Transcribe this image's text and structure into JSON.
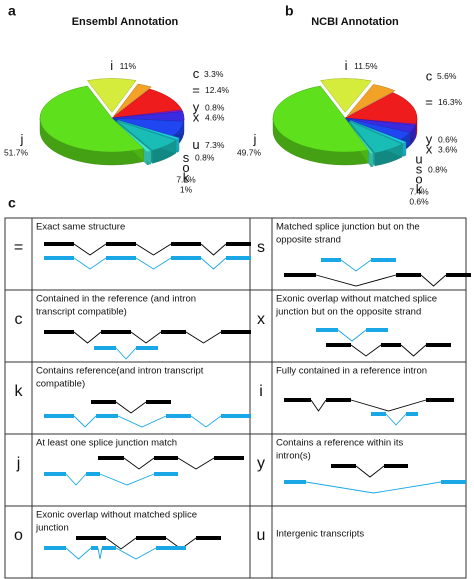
{
  "chart_data": [
    {
      "type": "pie",
      "panel": "a",
      "title": "Ensembl Annotation",
      "categories": [
        "i",
        "c",
        "=",
        "y",
        "x",
        "u",
        "s",
        "o",
        "k",
        "j"
      ],
      "values": [
        11,
        3.3,
        12.4,
        0.8,
        4.6,
        7.3,
        0.8,
        7.1,
        1,
        51.7
      ],
      "value_labels": [
        "11%",
        "3.3%",
        "12.4%",
        "0.8%",
        "4.6%",
        "7.3%",
        "0.8%",
        "7.1%",
        "1%",
        "51.7%"
      ],
      "colors": [
        "#d6ec3c",
        "#f2a227",
        "#ee1c1c",
        "#8a1ccf",
        "#3b2be0",
        "#1f46f0",
        "#1ed2ea",
        "#19bdb6",
        "#3fe6cf",
        "#5fe01c"
      ]
    },
    {
      "type": "pie",
      "panel": "b",
      "title": "NCBI Annotation",
      "categories": [
        "i",
        "c",
        "=",
        "y",
        "x",
        "u",
        "s",
        "o",
        "k",
        "j"
      ],
      "values": [
        11.5,
        5.6,
        16.3,
        0.6,
        3.6,
        3.9,
        0.8,
        7.4,
        0.6,
        49.7
      ],
      "value_labels": [
        "11.5%",
        "5.6%",
        "16.3%",
        "0.6%",
        "3.6%",
        null,
        "0.8%",
        "7.4%",
        "0.6%",
        "49.7%"
      ],
      "colors": [
        "#d6ec3c",
        "#f2a227",
        "#ee1c1c",
        "#8a1ccf",
        "#3b2be0",
        "#1f46f0",
        "#1ed2ea",
        "#19bdb6",
        "#3fe6cf",
        "#5fe01c"
      ]
    }
  ],
  "panel_c": {
    "label": "c",
    "rows": [
      {
        "left": {
          "code": "=",
          "lines": [
            "Exact same structure"
          ]
        },
        "right": {
          "code": "s",
          "lines": [
            "Matched splice junction but on the",
            "opposite strand"
          ]
        }
      },
      {
        "left": {
          "code": "c",
          "lines": [
            "Contained in the reference (and intron",
            "transcript compatible)"
          ]
        },
        "right": {
          "code": "x",
          "lines": [
            "Exonic overlap without matched splice",
            "junction but on the opposite strand"
          ]
        }
      },
      {
        "left": {
          "code": "k",
          "lines": [
            "Contains reference(and intron transcript",
            "compatible)"
          ]
        },
        "right": {
          "code": "i",
          "lines": [
            "Fully contained in a reference intron"
          ]
        }
      },
      {
        "left": {
          "code": "j",
          "lines": [
            "At least one splice junction match"
          ]
        },
        "right": {
          "code": "y",
          "lines": [
            "Contains a reference within its",
            "intron(s)"
          ]
        }
      },
      {
        "left": {
          "code": "o",
          "lines": [
            "Exonic overlap without matched splice",
            "junction"
          ]
        },
        "right": {
          "code": "u",
          "lines": [
            "Intergenic transcripts"
          ]
        }
      }
    ]
  }
}
